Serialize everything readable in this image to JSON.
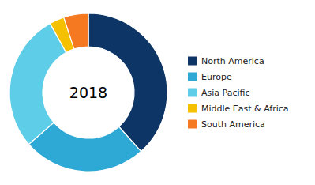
{
  "chart_data": {
    "type": "donut",
    "categories": [
      "North America",
      "Europe",
      "Asia Pacific",
      "Middle East & Africa",
      "South America"
    ],
    "values": [
      38,
      25,
      28,
      3,
      5
    ],
    "colors": [
      "#0d3566",
      "#2ea8d5",
      "#5ecde8",
      "#f5c000",
      "#f47920"
    ],
    "annotation": "2018",
    "legend": "right"
  }
}
